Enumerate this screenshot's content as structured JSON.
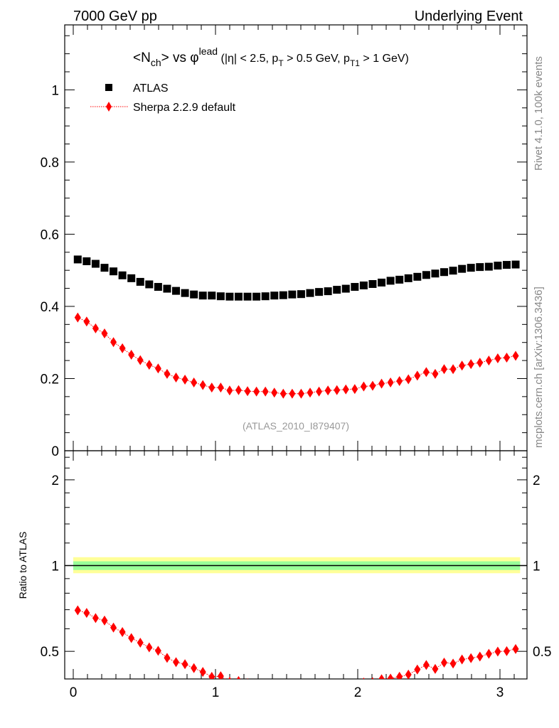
{
  "header": {
    "left": "7000 GeV pp",
    "right": "Underlying Event"
  },
  "side_labels": {
    "top": "Rivet 4.1.0,  100k events",
    "bottom": "mcplots.cern.ch [arXiv:1306.3436]"
  },
  "colors": {
    "data": "#000000",
    "mc": "#ff0000",
    "band_outer": "#ffff99",
    "band_inner": "#99ff99"
  },
  "chart_data": [
    {
      "type": "scatter",
      "title": {
        "main": "<N",
        "sub1": "ch",
        "mid": "> vs ",
        "phi": "φ",
        "sup": "lead",
        "cuts1": " (|η| < 2.5, p",
        "sub2": "T",
        "cuts2": " > 0.5 GeV, p",
        "sub3": "T1",
        "cuts3": " > 1 GeV)"
      },
      "analysis_tag": "(ATLAS_2010_I879407)",
      "xlim": [
        -0.06,
        3.19
      ],
      "ylim": [
        0,
        1.18
      ],
      "yticks": [
        0,
        0.2,
        0.4,
        0.6,
        0.8,
        1
      ],
      "ytick_labels": [
        "0",
        "0.2",
        "0.4",
        "0.6",
        "0.8",
        "1"
      ],
      "legend_placement": "top-left",
      "n_bins": 50,
      "series": [
        {
          "name": "ATLAS",
          "marker": "square",
          "values": [
            0.53,
            0.525,
            0.518,
            0.507,
            0.497,
            0.486,
            0.478,
            0.468,
            0.461,
            0.454,
            0.449,
            0.443,
            0.437,
            0.433,
            0.43,
            0.43,
            0.428,
            0.427,
            0.427,
            0.427,
            0.427,
            0.428,
            0.43,
            0.431,
            0.433,
            0.434,
            0.437,
            0.44,
            0.442,
            0.446,
            0.449,
            0.454,
            0.458,
            0.462,
            0.466,
            0.471,
            0.474,
            0.478,
            0.482,
            0.487,
            0.491,
            0.495,
            0.499,
            0.504,
            0.507,
            0.509,
            0.51,
            0.513,
            0.515,
            0.516
          ]
        },
        {
          "name": "Sherpa 2.2.9 default",
          "marker": "diamond",
          "values": [
            0.369,
            0.358,
            0.339,
            0.325,
            0.301,
            0.284,
            0.266,
            0.251,
            0.238,
            0.228,
            0.213,
            0.203,
            0.197,
            0.189,
            0.182,
            0.175,
            0.175,
            0.167,
            0.168,
            0.165,
            0.164,
            0.164,
            0.161,
            0.158,
            0.158,
            0.158,
            0.161,
            0.164,
            0.167,
            0.168,
            0.17,
            0.171,
            0.178,
            0.18,
            0.186,
            0.189,
            0.193,
            0.198,
            0.208,
            0.218,
            0.213,
            0.226,
            0.226,
            0.236,
            0.24,
            0.244,
            0.25,
            0.256,
            0.258,
            0.263
          ]
        }
      ]
    },
    {
      "type": "scatter",
      "ylabel": "Ratio to ATLAS",
      "yscale": "log",
      "ylim": [
        0.4,
        2.53
      ],
      "yticks": [
        0.5,
        1,
        2
      ],
      "ytick_labels": [
        "0.5",
        "1",
        "2"
      ],
      "xticks": [
        0,
        1,
        2,
        3
      ],
      "xtick_labels": [
        "0",
        "1",
        "2",
        "3"
      ],
      "band_inner": [
        0.965,
        1.035
      ],
      "band_outer": [
        0.94,
        1.07
      ]
    }
  ]
}
